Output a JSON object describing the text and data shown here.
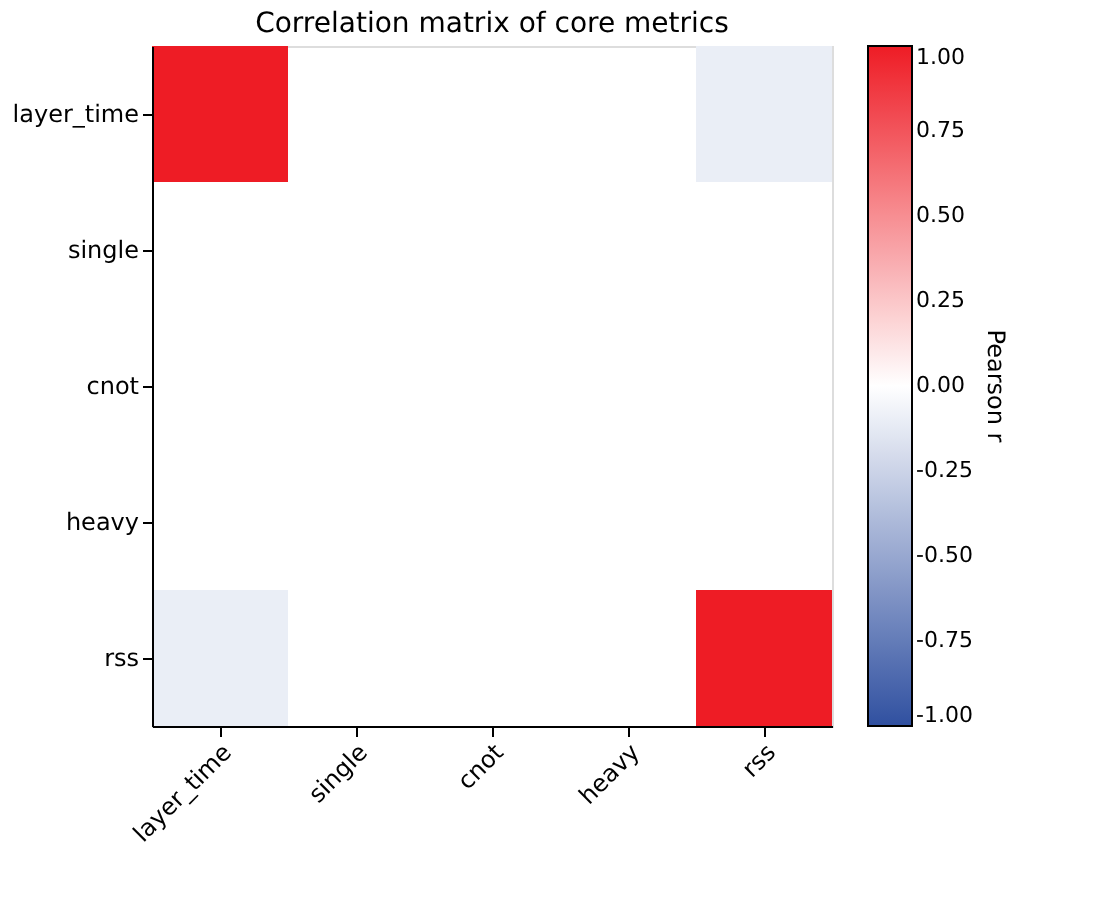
{
  "chart_data": {
    "type": "heatmap",
    "title": "Correlation matrix of core metrics",
    "categories": [
      "layer_time",
      "single",
      "cnot",
      "heavy",
      "rss"
    ],
    "y_categories": [
      "layer_time",
      "single",
      "cnot",
      "heavy",
      "rss"
    ],
    "cells": [
      [
        1.0,
        null,
        null,
        null,
        -0.1
      ],
      [
        null,
        null,
        null,
        null,
        null
      ],
      [
        null,
        null,
        null,
        null,
        null
      ],
      [
        null,
        null,
        null,
        null,
        null
      ],
      [
        -0.1,
        null,
        null,
        null,
        1.0
      ]
    ],
    "clabel": "Pearson r",
    "clim": [
      -1,
      1
    ],
    "colors": [
      "#3050a0",
      "#ffffff",
      "#ee1c25"
    ],
    "cticks": [
      {
        "value": -1,
        "label": "-1.00"
      },
      {
        "value": -0.75,
        "label": "-0.75"
      },
      {
        "value": -0.5,
        "label": "-0.50"
      },
      {
        "value": -0.25,
        "label": "-0.25"
      },
      {
        "value": 0,
        "label": "0.00"
      },
      {
        "value": 0.25,
        "label": "0.25"
      },
      {
        "value": 0.5,
        "label": "0.50"
      },
      {
        "value": 0.75,
        "label": "0.75"
      },
      {
        "value": 1,
        "label": "1.00"
      }
    ]
  }
}
